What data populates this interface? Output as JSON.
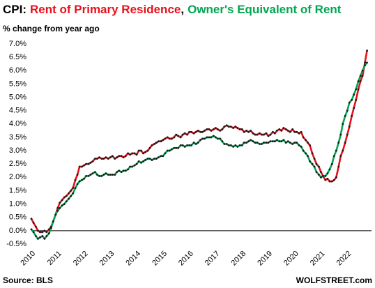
{
  "chart_data": {
    "type": "line",
    "title": "CPI:",
    "title_separator": ",",
    "subtitle": "% change from year ago",
    "source": "Source: BLS",
    "watermark": "WOLFSTREET.com",
    "x": [
      2010.0,
      2010.08,
      2010.17,
      2010.25,
      2010.33,
      2010.42,
      2010.5,
      2010.58,
      2010.67,
      2010.75,
      2010.83,
      2010.92,
      2011.0,
      2011.08,
      2011.17,
      2011.25,
      2011.33,
      2011.42,
      2011.5,
      2011.58,
      2011.67,
      2011.75,
      2011.83,
      2011.92,
      2012.0,
      2012.08,
      2012.17,
      2012.25,
      2012.33,
      2012.42,
      2012.5,
      2012.58,
      2012.67,
      2012.75,
      2012.83,
      2012.92,
      2013.0,
      2013.08,
      2013.17,
      2013.25,
      2013.33,
      2013.42,
      2013.5,
      2013.58,
      2013.67,
      2013.75,
      2013.83,
      2013.92,
      2014.0,
      2014.08,
      2014.17,
      2014.25,
      2014.33,
      2014.42,
      2014.5,
      2014.58,
      2014.67,
      2014.75,
      2014.83,
      2014.92,
      2015.0,
      2015.08,
      2015.17,
      2015.25,
      2015.33,
      2015.42,
      2015.5,
      2015.58,
      2015.67,
      2015.75,
      2015.83,
      2015.92,
      2016.0,
      2016.08,
      2016.17,
      2016.25,
      2016.33,
      2016.42,
      2016.5,
      2016.58,
      2016.67,
      2016.75,
      2016.83,
      2016.92,
      2017.0,
      2017.08,
      2017.17,
      2017.25,
      2017.33,
      2017.42,
      2017.5,
      2017.58,
      2017.67,
      2017.75,
      2017.83,
      2017.92,
      2018.0,
      2018.08,
      2018.17,
      2018.25,
      2018.33,
      2018.42,
      2018.5,
      2018.58,
      2018.67,
      2018.75,
      2018.83,
      2018.92,
      2019.0,
      2019.08,
      2019.17,
      2019.25,
      2019.33,
      2019.42,
      2019.5,
      2019.58,
      2019.67,
      2019.75,
      2019.83,
      2019.92,
      2020.0,
      2020.08,
      2020.17,
      2020.25,
      2020.33,
      2020.42,
      2020.5,
      2020.58,
      2020.67,
      2020.75,
      2020.83,
      2020.92,
      2021.0,
      2021.08,
      2021.17,
      2021.25,
      2021.33,
      2021.42,
      2021.5,
      2021.58,
      2021.67,
      2021.75,
      2021.83,
      2021.92,
      2022.0,
      2022.08,
      2022.17,
      2022.25,
      2022.33,
      2022.42,
      2022.5,
      2022.58,
      2022.67,
      2022.75
    ],
    "series": [
      {
        "name": "Rent of Primary Residence",
        "color": "#e8101a",
        "values": [
          0.45,
          0.3,
          0.15,
          0.0,
          -0.05,
          -0.05,
          0.0,
          -0.05,
          0.05,
          0.15,
          0.35,
          0.6,
          0.85,
          1.05,
          1.15,
          1.25,
          1.3,
          1.4,
          1.5,
          1.6,
          1.9,
          2.1,
          2.4,
          2.4,
          2.45,
          2.5,
          2.5,
          2.55,
          2.6,
          2.7,
          2.7,
          2.75,
          2.7,
          2.7,
          2.75,
          2.7,
          2.75,
          2.8,
          2.7,
          2.75,
          2.8,
          2.8,
          2.75,
          2.8,
          2.9,
          2.85,
          2.9,
          2.9,
          2.85,
          3.0,
          3.0,
          2.9,
          2.95,
          3.0,
          3.1,
          3.2,
          3.25,
          3.3,
          3.35,
          3.35,
          3.4,
          3.45,
          3.5,
          3.45,
          3.45,
          3.5,
          3.6,
          3.55,
          3.5,
          3.6,
          3.65,
          3.6,
          3.7,
          3.7,
          3.65,
          3.7,
          3.75,
          3.7,
          3.7,
          3.75,
          3.8,
          3.8,
          3.75,
          3.8,
          3.85,
          3.8,
          3.75,
          3.8,
          3.9,
          3.95,
          3.9,
          3.9,
          3.85,
          3.9,
          3.85,
          3.8,
          3.8,
          3.7,
          3.75,
          3.7,
          3.75,
          3.65,
          3.6,
          3.6,
          3.65,
          3.6,
          3.6,
          3.65,
          3.55,
          3.6,
          3.7,
          3.65,
          3.75,
          3.8,
          3.75,
          3.85,
          3.8,
          3.75,
          3.7,
          3.8,
          3.7,
          3.7,
          3.65,
          3.7,
          3.5,
          3.4,
          3.3,
          3.2,
          2.9,
          2.7,
          2.5,
          2.4,
          2.2,
          2.05,
          1.9,
          1.95,
          1.85,
          1.85,
          1.9,
          2.0,
          2.4,
          2.8,
          3.0,
          3.3,
          3.6,
          3.9,
          4.3,
          4.6,
          4.9,
          5.3,
          5.6,
          5.8,
          6.3,
          6.75
        ]
      },
      {
        "name": "Owner's Equivalent of Rent",
        "color": "#00a651",
        "values": [
          0.05,
          -0.05,
          -0.2,
          -0.3,
          -0.25,
          -0.2,
          -0.3,
          -0.2,
          -0.1,
          0.1,
          0.35,
          0.6,
          0.75,
          0.85,
          0.95,
          1.0,
          1.1,
          1.2,
          1.3,
          1.4,
          1.6,
          1.75,
          1.85,
          1.9,
          1.95,
          2.05,
          2.05,
          2.1,
          2.15,
          2.2,
          2.1,
          2.05,
          2.05,
          2.1,
          2.15,
          2.1,
          2.1,
          2.1,
          2.1,
          2.2,
          2.25,
          2.2,
          2.25,
          2.25,
          2.3,
          2.4,
          2.4,
          2.45,
          2.5,
          2.6,
          2.55,
          2.6,
          2.65,
          2.7,
          2.7,
          2.65,
          2.7,
          2.7,
          2.75,
          2.8,
          2.8,
          2.9,
          3.0,
          3.0,
          3.05,
          3.1,
          3.1,
          3.1,
          3.2,
          3.2,
          3.15,
          3.2,
          3.2,
          3.2,
          3.3,
          3.25,
          3.3,
          3.4,
          3.45,
          3.45,
          3.5,
          3.5,
          3.5,
          3.55,
          3.5,
          3.45,
          3.45,
          3.35,
          3.25,
          3.25,
          3.2,
          3.2,
          3.15,
          3.2,
          3.15,
          3.2,
          3.2,
          3.3,
          3.3,
          3.35,
          3.4,
          3.35,
          3.3,
          3.3,
          3.25,
          3.25,
          3.3,
          3.3,
          3.3,
          3.35,
          3.35,
          3.35,
          3.4,
          3.35,
          3.35,
          3.4,
          3.3,
          3.35,
          3.3,
          3.25,
          3.3,
          3.3,
          3.2,
          3.15,
          3.0,
          2.9,
          2.8,
          2.6,
          2.5,
          2.4,
          2.2,
          2.1,
          2.0,
          2.05,
          2.05,
          2.15,
          2.3,
          2.5,
          2.8,
          3.0,
          3.3,
          3.6,
          4.0,
          4.3,
          4.5,
          4.8,
          4.9,
          5.1,
          5.3,
          5.6,
          5.8,
          6.0,
          6.2,
          6.3
        ]
      }
    ],
    "marker_color": "#1a1a1a",
    "xlim": [
      2010,
      2023
    ],
    "xticks": [
      2010,
      2011,
      2012,
      2013,
      2014,
      2015,
      2016,
      2017,
      2018,
      2019,
      2020,
      2021,
      2022
    ],
    "ylim": [
      -0.5,
      7.0
    ],
    "yticks": [
      {
        "value": -0.5,
        "label": "-0.5%"
      },
      {
        "value": 0,
        "label": "0.0%"
      },
      {
        "value": 0.5,
        "label": "0.5%"
      },
      {
        "value": 1.0,
        "label": "1.0%"
      },
      {
        "value": 1.5,
        "label": "1.5%"
      },
      {
        "value": 2.0,
        "label": "2.0%"
      },
      {
        "value": 2.5,
        "label": "2.5%"
      },
      {
        "value": 3.0,
        "label": "3.0%"
      },
      {
        "value": 3.5,
        "label": "3.5%"
      },
      {
        "value": 4.0,
        "label": "4.0%"
      },
      {
        "value": 4.5,
        "label": "4.5%"
      },
      {
        "value": 5.0,
        "label": "5.0%"
      },
      {
        "value": 5.5,
        "label": "5.5%"
      },
      {
        "value": 6.0,
        "label": "6.0%"
      },
      {
        "value": 6.5,
        "label": "6.5%"
      },
      {
        "value": 7.0,
        "label": "7.0%"
      }
    ],
    "grid": false,
    "zero_line": true
  }
}
